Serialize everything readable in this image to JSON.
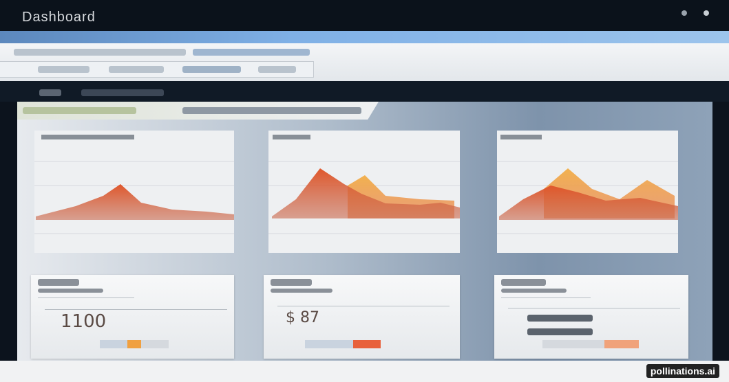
{
  "header": {
    "title": "Dashboard"
  },
  "stat_cards": [
    {
      "value": "1100"
    },
    {
      "value": "$ 87"
    }
  ],
  "watermark": "pollinations.ai"
}
